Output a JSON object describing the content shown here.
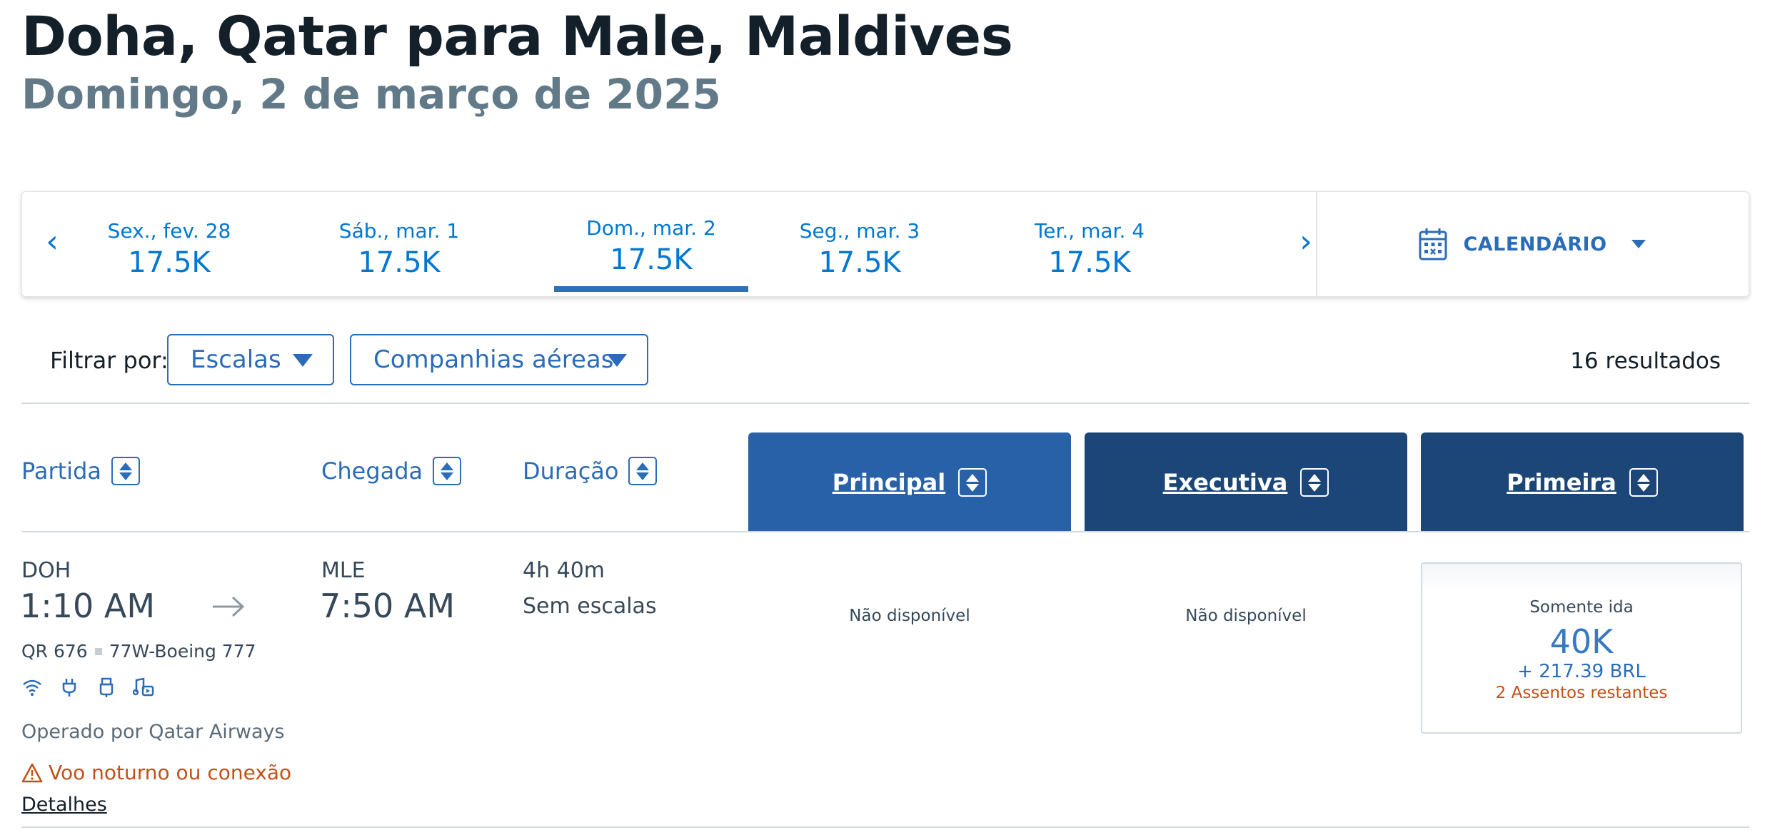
{
  "header": {
    "title": "Doha, Qatar para Male, Maldives",
    "subtitle": "Domingo, 2 de março de 2025"
  },
  "date_bar": {
    "prev_icon": "chevron-left",
    "next_icon": "chevron-right",
    "prev_glyph": "‹",
    "next_glyph": "›",
    "dates": [
      {
        "label": "Sex., fev. 28",
        "price": "17.5K",
        "active": false
      },
      {
        "label": "Sáb., mar. 1",
        "price": "17.5K",
        "active": false
      },
      {
        "label": "Dom., mar. 2",
        "price": "17.5K",
        "active": true
      },
      {
        "label": "Seg., mar. 3",
        "price": "17.5K",
        "active": false
      },
      {
        "label": "Ter., mar. 4",
        "price": "17.5K",
        "active": false
      }
    ],
    "calendar_label": "CALENDÁRIO",
    "calendar_icon": "calendar-icon"
  },
  "filters": {
    "label": "Filtrar por:",
    "stops_label": "Escalas",
    "airlines_label": "Companhias aéreas",
    "results": "16 resultados"
  },
  "columns": {
    "departure": "Partida",
    "arrival": "Chegada",
    "duration": "Duração",
    "cabins": [
      "Principal",
      "Executiva",
      "Primeira"
    ]
  },
  "flight": {
    "origin": "DOH",
    "depart_time": "1:10 AM",
    "destination": "MLE",
    "arrive_time": "7:50 AM",
    "duration": "4h 40m",
    "stops": "Sem escalas",
    "flight_number": "QR 676",
    "aircraft": "77W-Boeing 777",
    "amenities": [
      "wifi-icon",
      "power-plug-icon",
      "usb-icon",
      "entertainment-icon"
    ],
    "operated_by": "Operado por Qatar Airways",
    "warning": "Voo noturno ou conexão",
    "details_link": "Detalhes",
    "main_fare": "Não disponível",
    "business_fare": "Não disponível",
    "first_fare": {
      "type": "Somente ida",
      "miles": "40K",
      "tax": "+ 217.39 BRL",
      "seats_left": "2 Assentos restantes"
    }
  },
  "colors": {
    "accent": "#0078d2",
    "link_blue": "#2b6cb8",
    "cabin_main": "#2961a8",
    "cabin_premium": "#1c4678",
    "warning": "#c3501a",
    "title": "#131f29",
    "subtitle": "#627a88"
  }
}
